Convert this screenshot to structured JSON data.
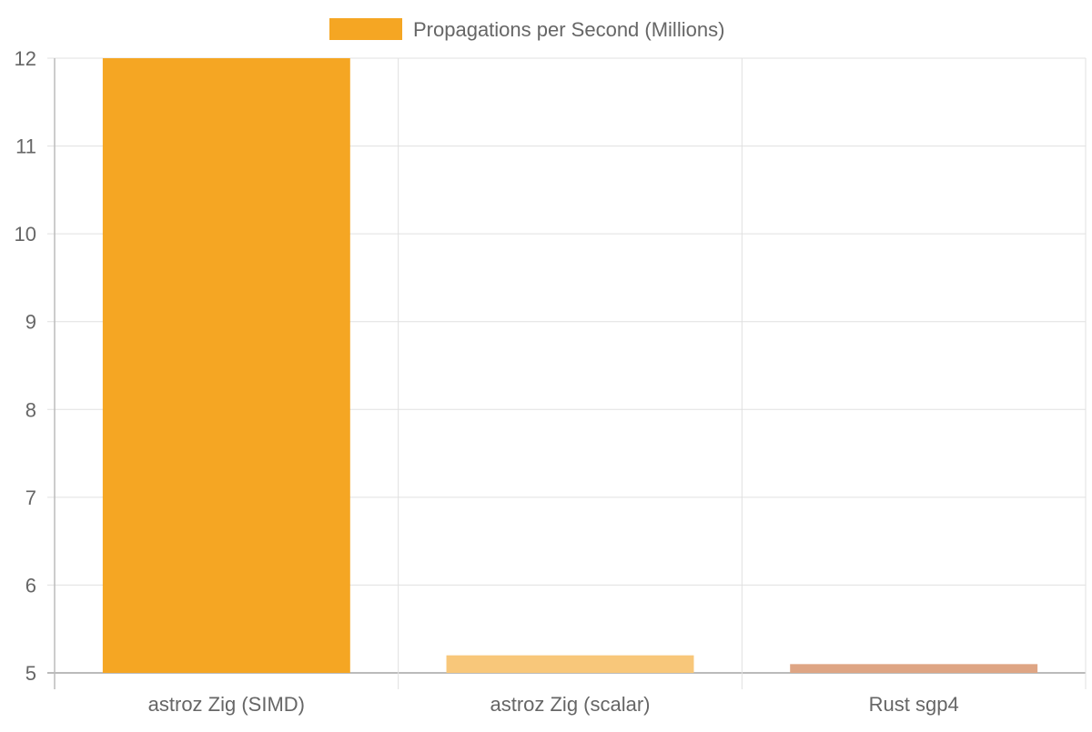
{
  "chart_data": {
    "type": "bar",
    "title": "",
    "legend": {
      "label": "Propagations per Second (Millions)",
      "position": "top",
      "color": "#f5a623"
    },
    "categories": [
      "astroz Zig (SIMD)",
      "astroz Zig (scalar)",
      "Rust sgp4"
    ],
    "series": [
      {
        "name": "Propagations per Second (Millions)",
        "values": [
          12,
          5.2,
          5.1
        ]
      }
    ],
    "colors": [
      "#f5a623",
      "#f8c77a",
      "#dea584"
    ],
    "ylim": [
      5,
      12
    ],
    "yticks": [
      5,
      6,
      7,
      8,
      9,
      10,
      11,
      12
    ],
    "grid": true,
    "xlabel": "",
    "ylabel": ""
  }
}
